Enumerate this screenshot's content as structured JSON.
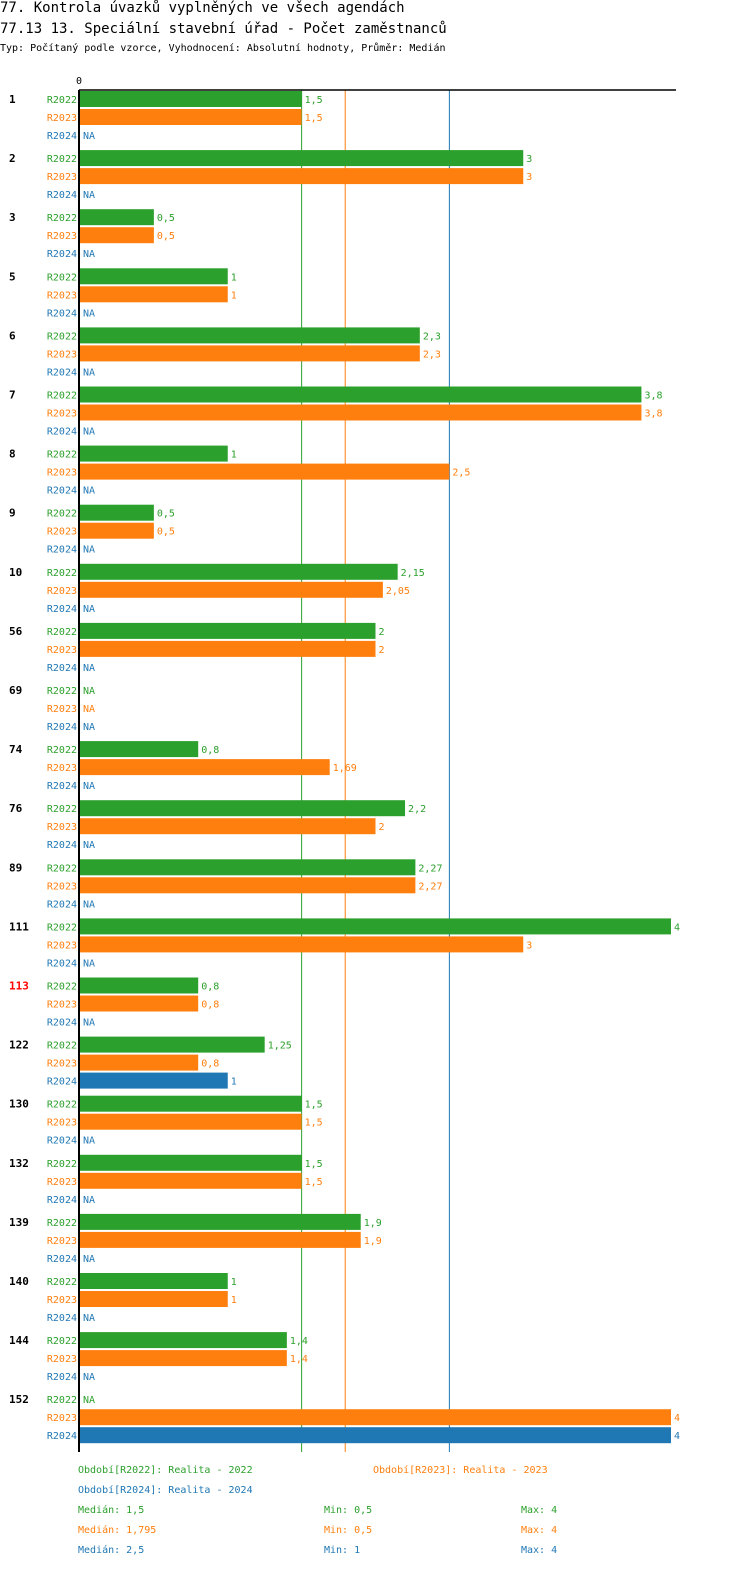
{
  "header": {
    "title": "77. Kontrola úvazků vyplněných ve všech agendách",
    "subtitle": "77.13 13. Speciální stavební úřad - Počet zaměstnanců",
    "info": "Typ: Počítaný podle vzorce, Vyhodnocení: Absolutní hodnoty, Průměr: Medián"
  },
  "colors": {
    "R2022": "#2ca02c",
    "R2023": "#ff7f0e",
    "R2024": "#1f77b4",
    "highlight": "#ff0000"
  },
  "chart_data": {
    "type": "bar",
    "orientation": "horizontal",
    "axis_zero_label": "0",
    "xlim": [
      0,
      4
    ],
    "na_label": "NA",
    "series_names": [
      "R2022",
      "R2023",
      "R2024"
    ],
    "categories": [
      {
        "label": "1",
        "highlight": false,
        "values": [
          "1,5",
          "1,5",
          "NA"
        ]
      },
      {
        "label": "2",
        "highlight": false,
        "values": [
          "3",
          "3",
          "NA"
        ]
      },
      {
        "label": "3",
        "highlight": false,
        "values": [
          "0,5",
          "0,5",
          "NA"
        ]
      },
      {
        "label": "5",
        "highlight": false,
        "values": [
          "1",
          "1",
          "NA"
        ]
      },
      {
        "label": "6",
        "highlight": false,
        "values": [
          "2,3",
          "2,3",
          "NA"
        ]
      },
      {
        "label": "7",
        "highlight": false,
        "values": [
          "3,8",
          "3,8",
          "NA"
        ]
      },
      {
        "label": "8",
        "highlight": false,
        "values": [
          "1",
          "2,5",
          "NA"
        ]
      },
      {
        "label": "9",
        "highlight": false,
        "values": [
          "0,5",
          "0,5",
          "NA"
        ]
      },
      {
        "label": "10",
        "highlight": false,
        "values": [
          "2,15",
          "2,05",
          "NA"
        ]
      },
      {
        "label": "56",
        "highlight": false,
        "values": [
          "2",
          "2",
          "NA"
        ]
      },
      {
        "label": "69",
        "highlight": false,
        "values": [
          "NA",
          "NA",
          "NA"
        ]
      },
      {
        "label": "74",
        "highlight": false,
        "values": [
          "0,8",
          "1,69",
          "NA"
        ]
      },
      {
        "label": "76",
        "highlight": false,
        "values": [
          "2,2",
          "2",
          "NA"
        ]
      },
      {
        "label": "89",
        "highlight": false,
        "values": [
          "2,27",
          "2,27",
          "NA"
        ]
      },
      {
        "label": "111",
        "highlight": false,
        "values": [
          "4",
          "3",
          "NA"
        ]
      },
      {
        "label": "113",
        "highlight": true,
        "values": [
          "0,8",
          "0,8",
          "NA"
        ]
      },
      {
        "label": "122",
        "highlight": false,
        "values": [
          "1,25",
          "0,8",
          "1"
        ]
      },
      {
        "label": "130",
        "highlight": false,
        "values": [
          "1,5",
          "1,5",
          "NA"
        ]
      },
      {
        "label": "132",
        "highlight": false,
        "values": [
          "1,5",
          "1,5",
          "NA"
        ]
      },
      {
        "label": "139",
        "highlight": false,
        "values": [
          "1,9",
          "1,9",
          "NA"
        ]
      },
      {
        "label": "140",
        "highlight": false,
        "values": [
          "1",
          "1",
          "NA"
        ]
      },
      {
        "label": "144",
        "highlight": false,
        "values": [
          "1,4",
          "1,4",
          "NA"
        ]
      },
      {
        "label": "152",
        "highlight": false,
        "values": [
          "NA",
          "4",
          "4"
        ]
      }
    ],
    "median_lines": [
      1.5,
      1.795,
      2.5
    ]
  },
  "legend": {
    "r2022": "Období[R2022]: Realita - 2022",
    "r2023": "Období[R2023]: Realita - 2023",
    "r2024": "Období[R2024]: Realita - 2024",
    "stats": [
      {
        "median": "Medián: 1,5",
        "min": "Min: 0,5",
        "max": "Max: 4"
      },
      {
        "median": "Medián: 1,795",
        "min": "Min: 0,5",
        "max": "Max: 4"
      },
      {
        "median": "Medián: 2,5",
        "min": "Min: 1",
        "max": "Max: 4"
      }
    ]
  }
}
